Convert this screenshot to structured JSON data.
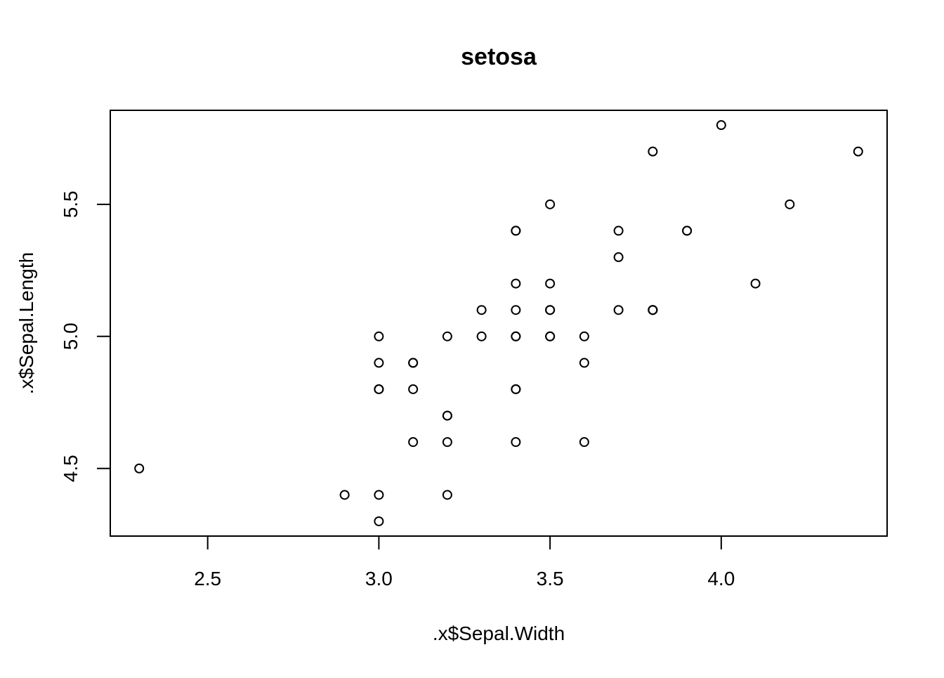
{
  "chart_data": {
    "type": "scatter",
    "title": "setosa",
    "xlabel": ".x$Sepal.Width",
    "ylabel": ".x$Sepal.Length",
    "xlim": [
      2.2155,
      4.4845
    ],
    "ylim": [
      4.244,
      5.856
    ],
    "xticks": [
      2.5,
      3.0,
      3.5,
      4.0
    ],
    "xtick_labels": [
      "2.5",
      "3.0",
      "3.5",
      "4.0"
    ],
    "yticks": [
      4.5,
      5.0,
      5.5
    ],
    "ytick_labels": [
      "4.5",
      "5.0",
      "5.5"
    ],
    "grid": false,
    "legend": "none",
    "marker": "open-circle",
    "colors": {
      "points": "#000000",
      "axes": "#000000",
      "background": "#ffffff"
    },
    "x": [
      3.5,
      3.0,
      3.2,
      3.1,
      3.6,
      3.9,
      3.4,
      3.4,
      2.9,
      3.1,
      3.7,
      3.4,
      3.0,
      3.0,
      4.0,
      4.4,
      3.9,
      3.5,
      3.8,
      3.8,
      3.4,
      3.7,
      3.6,
      3.3,
      3.4,
      3.0,
      3.4,
      3.5,
      3.4,
      3.2,
      3.1,
      3.4,
      4.1,
      4.2,
      3.1,
      3.2,
      3.5,
      3.6,
      3.0,
      3.4,
      3.5,
      2.3,
      3.2,
      3.5,
      3.8,
      3.0,
      3.8,
      3.2,
      3.7,
      3.3
    ],
    "y": [
      5.1,
      4.9,
      4.7,
      4.6,
      5.0,
      5.4,
      4.6,
      5.0,
      4.4,
      4.9,
      5.4,
      4.8,
      4.8,
      4.3,
      5.8,
      5.7,
      5.4,
      5.1,
      5.7,
      5.1,
      5.4,
      5.1,
      4.6,
      5.1,
      4.8,
      5.0,
      5.0,
      5.2,
      5.2,
      4.7,
      4.8,
      5.4,
      5.2,
      5.5,
      4.9,
      5.0,
      5.5,
      4.9,
      4.4,
      5.1,
      5.0,
      4.5,
      4.4,
      5.0,
      5.1,
      4.8,
      5.1,
      4.6,
      5.3,
      5.0
    ]
  }
}
